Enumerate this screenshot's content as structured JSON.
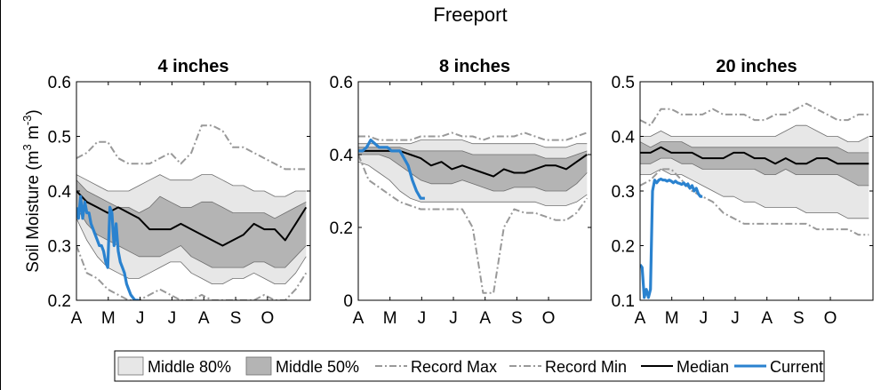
{
  "figure_title": "Freeport",
  "ylabel_parts": {
    "main": "Soil Moisture (m",
    "sup1": "3",
    "mid": " m",
    "sup2": "-3",
    "end": ")"
  },
  "colors": {
    "band80": "#e7e7e7",
    "band50": "#b4b4b4",
    "band_edge": "#6e6e6e",
    "record": "#999999",
    "median": "#000000",
    "current": "#2a82cf"
  },
  "legend": [
    {
      "key": "band80",
      "label": "Middle 80%"
    },
    {
      "key": "band50",
      "label": "Middle 50%"
    },
    {
      "key": "recmax",
      "label": "Record Max"
    },
    {
      "key": "recmin",
      "label": "Record Min"
    },
    {
      "key": "median",
      "label": "Median"
    },
    {
      "key": "current",
      "label": "Current"
    }
  ],
  "chart_data": [
    {
      "type": "line",
      "title": "4 inches",
      "x_ticks": [
        "A",
        "M",
        "J",
        "J",
        "A",
        "S",
        "O"
      ],
      "x_range_days": [
        0,
        224
      ],
      "ylim": [
        0.2,
        0.6
      ],
      "y_ticks": [
        0.2,
        0.3,
        0.4,
        0.5,
        0.6
      ],
      "y_tick_labels": [
        "0.2",
        "0.3",
        "0.4",
        "0.5",
        "0.6"
      ],
      "series": {
        "x": [
          0,
          10,
          20,
          30,
          40,
          50,
          60,
          70,
          80,
          90,
          100,
          110,
          120,
          130,
          140,
          150,
          160,
          170,
          180,
          190,
          200,
          210,
          220
        ],
        "p90": [
          0.43,
          0.42,
          0.41,
          0.4,
          0.4,
          0.4,
          0.41,
          0.42,
          0.43,
          0.42,
          0.42,
          0.42,
          0.43,
          0.43,
          0.42,
          0.41,
          0.41,
          0.4,
          0.4,
          0.39,
          0.39,
          0.4,
          0.4
        ],
        "p75": [
          0.42,
          0.4,
          0.39,
          0.38,
          0.37,
          0.37,
          0.36,
          0.37,
          0.39,
          0.38,
          0.37,
          0.37,
          0.38,
          0.38,
          0.37,
          0.36,
          0.36,
          0.36,
          0.36,
          0.35,
          0.36,
          0.37,
          0.38
        ],
        "median": [
          0.4,
          0.38,
          0.37,
          0.36,
          0.37,
          0.36,
          0.35,
          0.33,
          0.33,
          0.33,
          0.34,
          0.33,
          0.32,
          0.31,
          0.3,
          0.31,
          0.32,
          0.34,
          0.33,
          0.33,
          0.31,
          0.34,
          0.37
        ],
        "p25": [
          0.37,
          0.34,
          0.32,
          0.31,
          0.3,
          0.29,
          0.28,
          0.28,
          0.28,
          0.29,
          0.3,
          0.28,
          0.27,
          0.26,
          0.26,
          0.26,
          0.26,
          0.27,
          0.27,
          0.26,
          0.26,
          0.28,
          0.3
        ],
        "p10": [
          0.35,
          0.31,
          0.28,
          0.26,
          0.25,
          0.24,
          0.24,
          0.25,
          0.26,
          0.27,
          0.27,
          0.25,
          0.24,
          0.23,
          0.23,
          0.24,
          0.24,
          0.25,
          0.24,
          0.23,
          0.23,
          0.25,
          0.28
        ],
        "record_max": [
          0.46,
          0.47,
          0.49,
          0.49,
          0.46,
          0.45,
          0.45,
          0.45,
          0.46,
          0.47,
          0.45,
          0.47,
          0.52,
          0.52,
          0.51,
          0.48,
          0.48,
          0.47,
          0.46,
          0.45,
          0.44,
          0.44,
          0.44
        ],
        "record_min": [
          0.3,
          0.25,
          0.24,
          0.22,
          0.21,
          0.2,
          0.2,
          0.21,
          0.22,
          0.21,
          0.2,
          0.2,
          0.21,
          0.2,
          0.2,
          0.2,
          0.2,
          0.2,
          0.21,
          0.2,
          0.2,
          0.22,
          0.25
        ],
        "current_x": [
          0,
          2,
          4,
          6,
          8,
          10,
          12,
          14,
          16,
          18,
          20,
          22,
          24,
          26,
          28,
          30,
          32,
          34,
          36,
          38,
          40,
          42,
          44,
          46,
          48,
          50,
          52,
          54,
          56,
          58,
          60
        ],
        "current_y": [
          0.37,
          0.35,
          0.39,
          0.35,
          0.38,
          0.36,
          0.36,
          0.34,
          0.33,
          0.32,
          0.31,
          0.3,
          0.3,
          0.29,
          0.27,
          0.26,
          0.37,
          0.36,
          0.3,
          0.34,
          0.29,
          0.27,
          0.26,
          0.25,
          0.23,
          0.22,
          0.21,
          0.205,
          0.2,
          0.2,
          0.2
        ]
      }
    },
    {
      "type": "line",
      "title": "8 inches",
      "x_ticks": [
        "A",
        "M",
        "J",
        "J",
        "A",
        "S",
        "O"
      ],
      "x_range_days": [
        0,
        224
      ],
      "ylim": [
        0,
        0.6
      ],
      "y_ticks": [
        0,
        0.2,
        0.4,
        0.6
      ],
      "y_tick_labels": [
        "0",
        "0.2",
        "0.4",
        "0.6"
      ],
      "series": {
        "x": [
          0,
          10,
          20,
          30,
          40,
          50,
          60,
          70,
          80,
          90,
          100,
          110,
          120,
          130,
          140,
          150,
          160,
          170,
          180,
          190,
          200,
          210,
          220
        ],
        "p90": [
          0.43,
          0.43,
          0.43,
          0.43,
          0.43,
          0.43,
          0.44,
          0.44,
          0.44,
          0.44,
          0.44,
          0.43,
          0.43,
          0.43,
          0.43,
          0.43,
          0.43,
          0.43,
          0.42,
          0.42,
          0.42,
          0.43,
          0.43
        ],
        "p75": [
          0.42,
          0.42,
          0.42,
          0.42,
          0.42,
          0.41,
          0.41,
          0.41,
          0.41,
          0.41,
          0.41,
          0.4,
          0.4,
          0.4,
          0.4,
          0.4,
          0.4,
          0.4,
          0.39,
          0.39,
          0.39,
          0.4,
          0.41
        ],
        "median": [
          0.41,
          0.41,
          0.41,
          0.41,
          0.41,
          0.4,
          0.39,
          0.37,
          0.38,
          0.36,
          0.37,
          0.36,
          0.35,
          0.34,
          0.36,
          0.35,
          0.35,
          0.36,
          0.37,
          0.37,
          0.36,
          0.38,
          0.4
        ],
        "p25": [
          0.4,
          0.4,
          0.4,
          0.39,
          0.37,
          0.35,
          0.33,
          0.32,
          0.32,
          0.32,
          0.33,
          0.32,
          0.31,
          0.3,
          0.3,
          0.31,
          0.31,
          0.31,
          0.3,
          0.3,
          0.3,
          0.32,
          0.35
        ],
        "p10": [
          0.38,
          0.37,
          0.35,
          0.33,
          0.3,
          0.28,
          0.27,
          0.27,
          0.27,
          0.27,
          0.27,
          0.27,
          0.27,
          0.27,
          0.27,
          0.27,
          0.27,
          0.27,
          0.26,
          0.26,
          0.26,
          0.27,
          0.29
        ],
        "record_max": [
          0.45,
          0.45,
          0.44,
          0.44,
          0.44,
          0.44,
          0.45,
          0.45,
          0.45,
          0.46,
          0.45,
          0.45,
          0.44,
          0.45,
          0.45,
          0.45,
          0.46,
          0.45,
          0.44,
          0.44,
          0.44,
          0.45,
          0.46
        ],
        "record_min": [
          0.4,
          0.33,
          0.31,
          0.29,
          0.27,
          0.26,
          0.25,
          0.25,
          0.25,
          0.25,
          0.25,
          0.2,
          0.02,
          0.02,
          0.2,
          0.25,
          0.24,
          0.24,
          0.23,
          0.22,
          0.22,
          0.24,
          0.28
        ],
        "current_x": [
          0,
          4,
          8,
          12,
          16,
          20,
          24,
          28,
          32,
          36,
          40,
          44,
          48,
          52,
          56,
          60,
          64
        ],
        "current_y": [
          0.41,
          0.41,
          0.42,
          0.44,
          0.43,
          0.42,
          0.42,
          0.42,
          0.41,
          0.41,
          0.41,
          0.39,
          0.37,
          0.33,
          0.3,
          0.28,
          0.28
        ]
      }
    },
    {
      "type": "line",
      "title": "20 inches",
      "x_ticks": [
        "A",
        "M",
        "J",
        "J",
        "A",
        "S",
        "O"
      ],
      "x_range_days": [
        0,
        224
      ],
      "ylim": [
        0.1,
        0.5
      ],
      "y_ticks": [
        0.1,
        0.2,
        0.3,
        0.4,
        0.5
      ],
      "y_tick_labels": [
        "0.1",
        "0.2",
        "0.3",
        "0.4",
        "0.5"
      ],
      "series": {
        "x": [
          0,
          10,
          20,
          30,
          40,
          50,
          60,
          70,
          80,
          90,
          100,
          110,
          120,
          130,
          140,
          150,
          160,
          170,
          180,
          190,
          200,
          210,
          220
        ],
        "p90": [
          0.4,
          0.4,
          0.41,
          0.4,
          0.4,
          0.4,
          0.4,
          0.4,
          0.4,
          0.4,
          0.4,
          0.4,
          0.4,
          0.4,
          0.41,
          0.42,
          0.42,
          0.41,
          0.4,
          0.4,
          0.39,
          0.39,
          0.4
        ],
        "p75": [
          0.39,
          0.38,
          0.39,
          0.39,
          0.39,
          0.38,
          0.38,
          0.38,
          0.38,
          0.38,
          0.38,
          0.38,
          0.38,
          0.38,
          0.38,
          0.38,
          0.38,
          0.38,
          0.38,
          0.38,
          0.37,
          0.37,
          0.37
        ],
        "median": [
          0.37,
          0.37,
          0.38,
          0.37,
          0.37,
          0.37,
          0.36,
          0.36,
          0.36,
          0.37,
          0.37,
          0.36,
          0.36,
          0.35,
          0.36,
          0.35,
          0.35,
          0.36,
          0.36,
          0.35,
          0.35,
          0.35,
          0.35
        ],
        "p25": [
          0.35,
          0.35,
          0.36,
          0.36,
          0.35,
          0.35,
          0.34,
          0.34,
          0.34,
          0.34,
          0.34,
          0.34,
          0.33,
          0.33,
          0.34,
          0.33,
          0.33,
          0.33,
          0.33,
          0.33,
          0.32,
          0.31,
          0.31
        ],
        "p10": [
          0.33,
          0.33,
          0.34,
          0.33,
          0.33,
          0.32,
          0.31,
          0.3,
          0.29,
          0.29,
          0.28,
          0.28,
          0.27,
          0.27,
          0.27,
          0.27,
          0.26,
          0.26,
          0.26,
          0.26,
          0.25,
          0.25,
          0.25
        ],
        "record_max": [
          0.43,
          0.42,
          0.45,
          0.45,
          0.44,
          0.44,
          0.44,
          0.45,
          0.44,
          0.44,
          0.44,
          0.43,
          0.43,
          0.44,
          0.44,
          0.45,
          0.46,
          0.45,
          0.44,
          0.43,
          0.43,
          0.44,
          0.44
        ],
        "record_min": [
          0.31,
          0.32,
          0.34,
          0.34,
          0.32,
          0.3,
          0.29,
          0.28,
          0.26,
          0.25,
          0.24,
          0.24,
          0.24,
          0.24,
          0.24,
          0.24,
          0.24,
          0.23,
          0.23,
          0.23,
          0.23,
          0.22,
          0.22
        ],
        "current_x": [
          0,
          2,
          4,
          6,
          8,
          10,
          12,
          14,
          16,
          18,
          20,
          22,
          24,
          26,
          28,
          30,
          32,
          34,
          36,
          38,
          40,
          42,
          44,
          46,
          48,
          50,
          52,
          54,
          56,
          58,
          60
        ],
        "current_y": [
          0.165,
          0.16,
          0.105,
          0.12,
          0.105,
          0.12,
          0.3,
          0.32,
          0.315,
          0.32,
          0.322,
          0.32,
          0.32,
          0.318,
          0.32,
          0.318,
          0.315,
          0.318,
          0.315,
          0.314,
          0.312,
          0.315,
          0.31,
          0.313,
          0.305,
          0.31,
          0.3,
          0.305,
          0.295,
          0.29,
          0.29
        ]
      }
    }
  ]
}
